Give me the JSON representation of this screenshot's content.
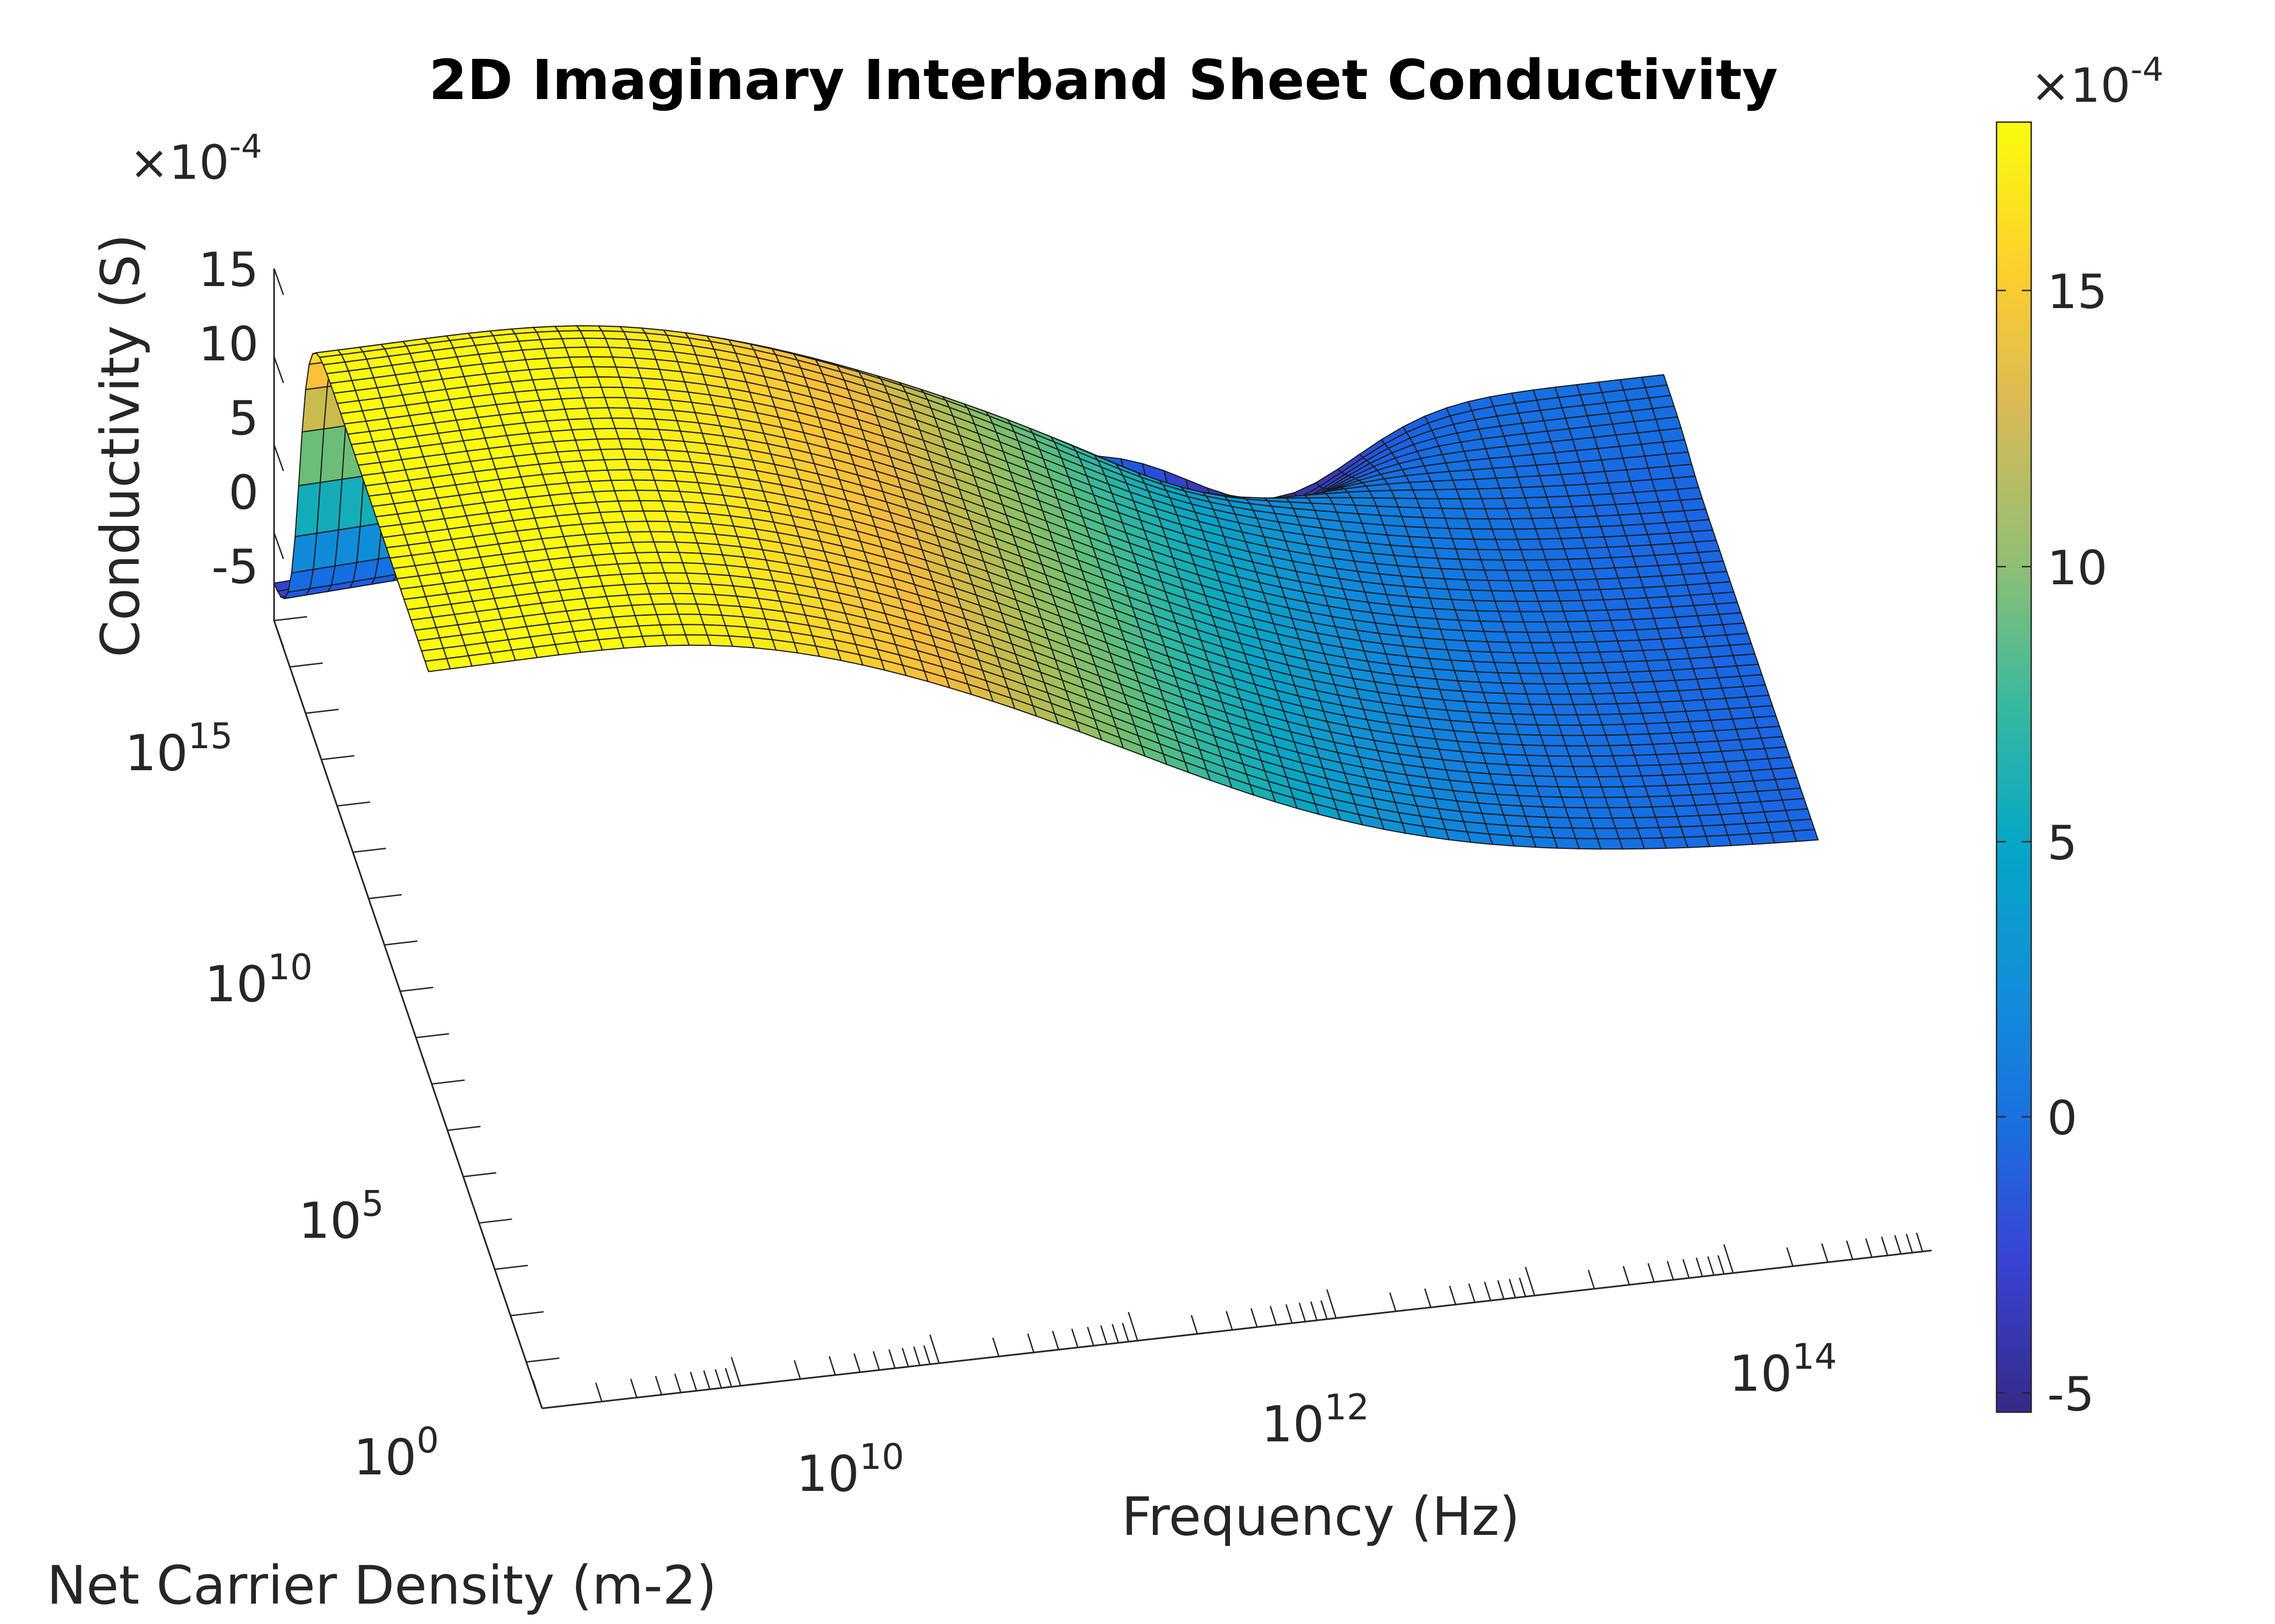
{
  "chart_data": {
    "type": "surface",
    "title": "2D Imaginary Interband Sheet Conductivity",
    "xlabel": "Frequency (Hz)",
    "ylabel": "Net Carrier Density (m-2)",
    "zlabel": "Conductivity (S)",
    "x_scale": "log",
    "y_scale": "log",
    "xlim": [
      100000000.0,
      1000000000000000.0
    ],
    "ylim": [
      1,
      1e+17
    ],
    "zlim": [
      -0.0005,
      0.0015
    ],
    "z_exponent_label": {
      "base": "×10",
      "exp": "-4"
    },
    "x_ticks": [
      {
        "base": "10",
        "exp": "10"
      },
      {
        "base": "10",
        "exp": "12"
      },
      {
        "base": "10",
        "exp": "14"
      }
    ],
    "y_ticks": [
      {
        "base": "10",
        "exp": "0"
      },
      {
        "base": "10",
        "exp": "5"
      },
      {
        "base": "10",
        "exp": "10"
      },
      {
        "base": "10",
        "exp": "15"
      }
    ],
    "z_ticks": [
      "15",
      "10",
      "5",
      "0",
      "-5"
    ],
    "colorbar": {
      "colormap": "parula",
      "range": [
        -0.00055,
        0.0018
      ],
      "ticks": [
        "15",
        "10",
        "5",
        "0",
        "-5"
      ],
      "exponent_label": {
        "base": "×10",
        "exp": "-4"
      }
    },
    "surface_description": {
      "low_frequency_low_density": 0.0018,
      "low_frequency_high_density": -0.0003,
      "high_frequency_all_density": -0.0001,
      "dip_min": -0.00055
    }
  }
}
